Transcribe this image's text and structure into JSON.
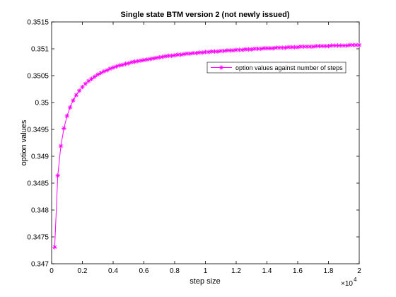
{
  "chart_data": {
    "type": "line",
    "title": "Single state BTM version 2 (not newly issued)",
    "xlabel": "step size",
    "ylabel": "option values",
    "x_exponent_label": "×10",
    "x_exponent_power": "4",
    "xlim": [
      0,
      20000
    ],
    "ylim": [
      0.347,
      0.3515
    ],
    "x_tick_values": [
      0,
      2000,
      4000,
      6000,
      8000,
      10000,
      12000,
      14000,
      16000,
      18000,
      20000
    ],
    "x_tick_labels": [
      "0",
      "0.2",
      "0.4",
      "0.6",
      "0.8",
      "1",
      "1.2",
      "1.4",
      "1.6",
      "1.8",
      "2"
    ],
    "y_tick_values": [
      0.347,
      0.3475,
      0.348,
      0.3485,
      0.349,
      0.3495,
      0.35,
      0.3505,
      0.351,
      0.3515
    ],
    "y_tick_labels": [
      "0.347",
      "0.3475",
      "0.348",
      "0.3485",
      "0.349",
      "0.3495",
      "0.35",
      "0.3505",
      "0.351",
      "0.3515"
    ],
    "grid": false,
    "legend_position": "top-right",
    "legend": [
      "option values against number of steps"
    ],
    "series": [
      {
        "name": "option values against number of steps",
        "color": "#ff00ff",
        "marker": "asterisk",
        "x": [
          200,
          400,
          600,
          800,
          1000,
          1200,
          1400,
          1600,
          1800,
          2000,
          2200,
          2400,
          2600,
          2800,
          3000,
          3200,
          3400,
          3600,
          3800,
          4000,
          4200,
          4400,
          4600,
          4800,
          5000,
          5200,
          5400,
          5600,
          5800,
          6000,
          6200,
          6400,
          6600,
          6800,
          7000,
          7200,
          7400,
          7600,
          7800,
          8000,
          8200,
          8400,
          8600,
          8800,
          9000,
          9200,
          9400,
          9600,
          9800,
          10000,
          10200,
          10400,
          10600,
          10800,
          11000,
          11200,
          11400,
          11600,
          11800,
          12000,
          12200,
          12400,
          12600,
          12800,
          13000,
          13200,
          13400,
          13600,
          13800,
          14000,
          14200,
          14400,
          14600,
          14800,
          15000,
          15200,
          15400,
          15600,
          15800,
          16000,
          16200,
          16400,
          16600,
          16800,
          17000,
          17200,
          17400,
          17600,
          17800,
          18000,
          18200,
          18400,
          18600,
          18800,
          19000,
          19200,
          19400,
          19600,
          19800,
          20000
        ],
        "y": [
          0.34731,
          0.34864,
          0.34919,
          0.34952,
          0.34975,
          0.34991,
          0.35004,
          0.35014,
          0.35022,
          0.35029,
          0.35035,
          0.3504,
          0.35044,
          0.35048,
          0.35052,
          0.35055,
          0.35058,
          0.3506,
          0.35063,
          0.35065,
          0.35067,
          0.35069,
          0.3507,
          0.35072,
          0.35073,
          0.35075,
          0.35076,
          0.35077,
          0.35078,
          0.35079,
          0.3508,
          0.35081,
          0.35082,
          0.35083,
          0.35084,
          0.35085,
          0.35086,
          0.35087,
          0.35087,
          0.35088,
          0.35089,
          0.35089,
          0.3509,
          0.35091,
          0.35091,
          0.35092,
          0.35092,
          0.35093,
          0.35093,
          0.35094,
          0.35094,
          0.35095,
          0.35095,
          0.35095,
          0.35096,
          0.35096,
          0.35097,
          0.35097,
          0.35097,
          0.35098,
          0.35098,
          0.35098,
          0.35099,
          0.35099,
          0.35099,
          0.351,
          0.351,
          0.351,
          0.35101,
          0.35101,
          0.35101,
          0.35101,
          0.35102,
          0.35102,
          0.35102,
          0.35102,
          0.35103,
          0.35103,
          0.35103,
          0.35103,
          0.35104,
          0.35104,
          0.35104,
          0.35104,
          0.35104,
          0.35105,
          0.35105,
          0.35105,
          0.35105,
          0.35105,
          0.35106,
          0.35106,
          0.35106,
          0.35106,
          0.35106,
          0.35106,
          0.35107,
          0.35107,
          0.35107,
          0.35107
        ]
      }
    ]
  }
}
